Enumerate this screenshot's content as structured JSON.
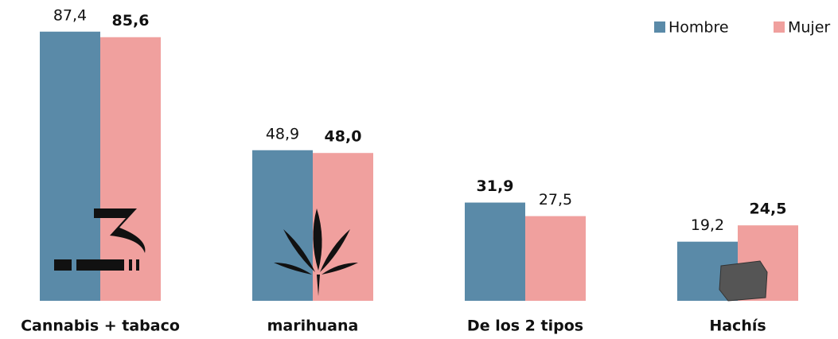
{
  "chart_data": {
    "type": "bar",
    "categories": [
      "Cannabis + tabaco",
      "marihuana",
      "De los 2 tipos",
      "Hachís"
    ],
    "series": [
      {
        "name": "Hombre",
        "color": "#5a8aa8",
        "values": [
          87.4,
          48.9,
          31.9,
          19.2
        ],
        "value_labels": [
          "87,4",
          "48,9",
          "31,9",
          "19,2"
        ]
      },
      {
        "name": "Mujer",
        "color": "#f0a09e",
        "values": [
          85.6,
          48.0,
          27.5,
          24.5
        ],
        "value_labels": [
          "85,6",
          "48,0",
          "27,5",
          "24,5"
        ]
      }
    ],
    "legend": "top-right"
  }
}
